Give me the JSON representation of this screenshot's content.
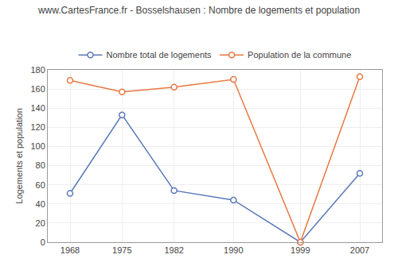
{
  "chart_data": {
    "type": "line",
    "title": "www.CartesFrance.fr - Bosselshausen : Nombre de logements et population",
    "ylabel": "Logements et population",
    "x": [
      1968,
      1975,
      1982,
      1990,
      1999,
      2007
    ],
    "series": [
      {
        "name": "Nombre total de logements",
        "color": "#5a78b8",
        "marker": "circle-open",
        "values": [
          51,
          133,
          54,
          44,
          0,
          72
        ]
      },
      {
        "name": "Population de la commune",
        "color": "#e87840",
        "marker": "circle-open",
        "values": [
          169,
          157,
          162,
          170,
          0,
          173
        ]
      }
    ],
    "xlim": [
      1965,
      2010
    ],
    "xticks": [
      1968,
      1975,
      1982,
      1990,
      1999,
      2007
    ],
    "ylim": [
      0,
      180
    ],
    "yticks": [
      0,
      20,
      40,
      60,
      80,
      100,
      120,
      140,
      160,
      180
    ],
    "grid": true,
    "legend": "top"
  }
}
